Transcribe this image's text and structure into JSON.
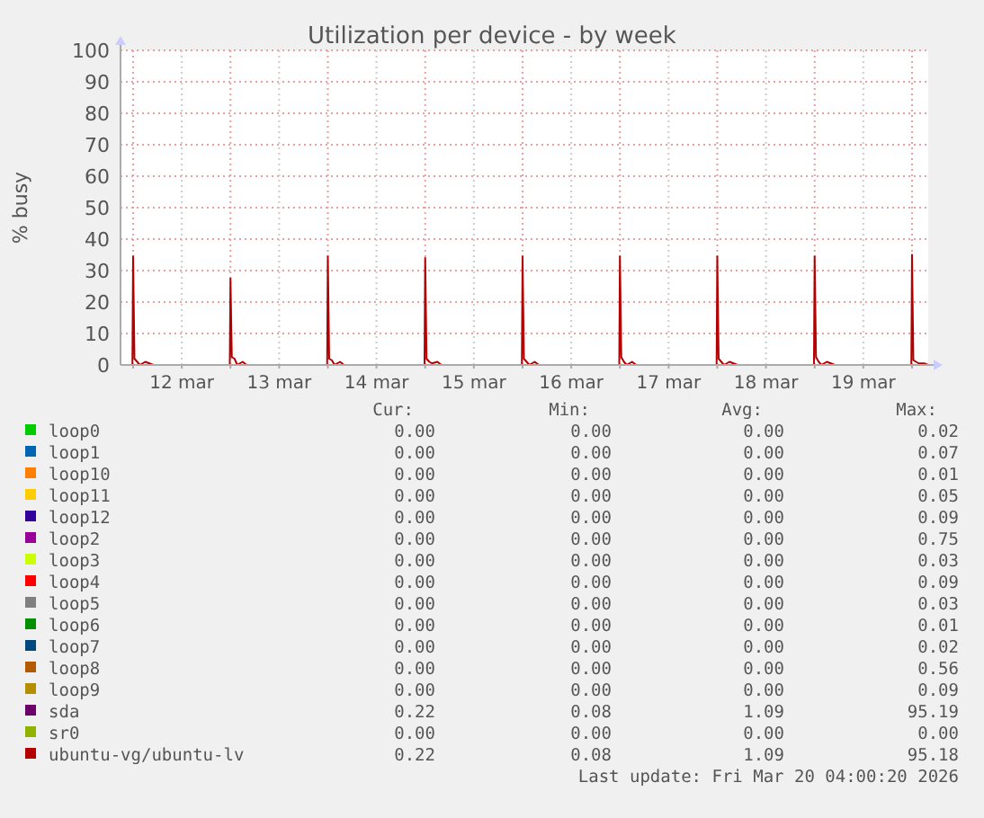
{
  "chart_data": {
    "type": "line",
    "title": "Utilization per device - by week",
    "ylabel": "% busy",
    "x": [
      "2026-03-11T20:54",
      "2026-03-11T23:50",
      "2026-03-12T00:00",
      "2026-03-12T00:20",
      "2026-03-12T01:00",
      "2026-03-12T01:40",
      "2026-03-12T03:00",
      "2026-03-12T04:00",
      "2026-03-12T05:00",
      "2026-03-12T23:50",
      "2026-03-13T00:00",
      "2026-03-13T00:20",
      "2026-03-13T01:00",
      "2026-03-13T01:40",
      "2026-03-13T03:00",
      "2026-03-13T04:00",
      "2026-03-13T05:00",
      "2026-03-13T23:50",
      "2026-03-14T00:00",
      "2026-03-14T00:20",
      "2026-03-14T01:00",
      "2026-03-14T01:40",
      "2026-03-14T03:00",
      "2026-03-14T04:00",
      "2026-03-14T05:00",
      "2026-03-14T23:50",
      "2026-03-15T00:00",
      "2026-03-15T00:20",
      "2026-03-15T01:00",
      "2026-03-15T01:40",
      "2026-03-15T03:00",
      "2026-03-15T04:00",
      "2026-03-15T05:00",
      "2026-03-15T23:50",
      "2026-03-16T00:00",
      "2026-03-16T00:20",
      "2026-03-16T01:00",
      "2026-03-16T01:40",
      "2026-03-16T03:00",
      "2026-03-16T04:00",
      "2026-03-16T05:00",
      "2026-03-16T23:50",
      "2026-03-17T00:00",
      "2026-03-17T00:20",
      "2026-03-17T01:00",
      "2026-03-17T01:40",
      "2026-03-17T03:00",
      "2026-03-17T04:00",
      "2026-03-17T05:00",
      "2026-03-17T23:50",
      "2026-03-18T00:00",
      "2026-03-18T00:20",
      "2026-03-18T01:00",
      "2026-03-18T01:40",
      "2026-03-18T03:00",
      "2026-03-18T04:00",
      "2026-03-18T05:00",
      "2026-03-18T23:50",
      "2026-03-19T00:00",
      "2026-03-19T00:20",
      "2026-03-19T01:00",
      "2026-03-19T01:40",
      "2026-03-19T03:00",
      "2026-03-19T04:00",
      "2026-03-19T05:00",
      "2026-03-19T23:50",
      "2026-03-20T00:00",
      "2026-03-20T00:20",
      "2026-03-20T01:00",
      "2026-03-20T01:40",
      "2026-03-20T03:00",
      "2026-03-20T04:00"
    ],
    "xlim": [
      "2026-03-11T20:54",
      "2026-03-20T04:00"
    ],
    "xticks": [
      {
        "value": "2026-03-12T00:00",
        "label": null
      },
      {
        "value": "2026-03-12T12:00",
        "label": "12 mar"
      },
      {
        "value": "2026-03-13T00:00",
        "label": null
      },
      {
        "value": "2026-03-13T12:00",
        "label": "13 mar"
      },
      {
        "value": "2026-03-14T00:00",
        "label": null
      },
      {
        "value": "2026-03-14T12:00",
        "label": "14 mar"
      },
      {
        "value": "2026-03-15T00:00",
        "label": null
      },
      {
        "value": "2026-03-15T12:00",
        "label": "15 mar"
      },
      {
        "value": "2026-03-16T00:00",
        "label": null
      },
      {
        "value": "2026-03-16T12:00",
        "label": "16 mar"
      },
      {
        "value": "2026-03-17T00:00",
        "label": null
      },
      {
        "value": "2026-03-17T12:00",
        "label": "17 mar"
      },
      {
        "value": "2026-03-18T00:00",
        "label": null
      },
      {
        "value": "2026-03-18T12:00",
        "label": "18 mar"
      },
      {
        "value": "2026-03-19T00:00",
        "label": null
      },
      {
        "value": "2026-03-19T12:00",
        "label": "19 mar"
      },
      {
        "value": "2026-03-20T00:00",
        "label": null
      }
    ],
    "ylim": [
      0,
      100
    ],
    "yticks": [
      0,
      10,
      20,
      30,
      40,
      50,
      60,
      70,
      80,
      90,
      100
    ],
    "grid": true,
    "legend": "bottom",
    "series": [
      {
        "name": "loop0",
        "color": "#00cc00",
        "values": [
          null,
          null,
          null,
          null,
          null,
          null,
          null,
          null,
          null,
          null,
          null,
          null,
          null,
          null,
          null,
          null,
          null,
          null,
          null,
          null,
          null,
          null,
          null,
          null,
          null,
          null,
          null,
          null,
          null,
          null,
          null,
          null,
          null,
          null,
          null,
          null,
          null,
          null,
          null,
          null,
          null,
          null,
          null,
          null,
          null,
          null,
          null,
          null,
          null,
          null,
          null,
          null,
          null,
          null,
          null,
          null,
          null,
          null,
          null,
          null,
          null,
          null,
          null,
          null,
          null,
          null,
          null,
          null,
          null,
          null,
          null,
          null
        ]
      },
      {
        "name": "loop1",
        "color": "#0066b3",
        "values": [
          null,
          null,
          null,
          null,
          null,
          null,
          null,
          null,
          null,
          null,
          null,
          null,
          null,
          null,
          null,
          null,
          null,
          null,
          null,
          null,
          null,
          null,
          null,
          null,
          null,
          null,
          null,
          null,
          null,
          null,
          null,
          null,
          null,
          null,
          null,
          null,
          null,
          null,
          null,
          null,
          null,
          null,
          null,
          null,
          null,
          null,
          null,
          null,
          null,
          null,
          null,
          null,
          null,
          null,
          null,
          null,
          null,
          null,
          null,
          null,
          null,
          null,
          null,
          null,
          null,
          null,
          null,
          null,
          null,
          null,
          null,
          null
        ]
      },
      {
        "name": "loop10",
        "color": "#ff8000",
        "values": [
          null,
          null,
          null,
          null,
          null,
          null,
          null,
          null,
          null,
          null,
          null,
          null,
          null,
          null,
          null,
          null,
          null,
          null,
          null,
          null,
          null,
          null,
          null,
          null,
          null,
          null,
          null,
          null,
          null,
          null,
          null,
          null,
          null,
          null,
          null,
          null,
          null,
          null,
          null,
          null,
          null,
          null,
          null,
          null,
          null,
          null,
          null,
          null,
          null,
          null,
          null,
          null,
          null,
          null,
          null,
          null,
          null,
          null,
          null,
          null,
          null,
          null,
          null,
          null,
          null,
          null,
          null,
          null,
          null,
          null,
          null,
          null
        ]
      },
      {
        "name": "loop11",
        "color": "#ffcc00",
        "values": [
          null,
          null,
          null,
          null,
          null,
          null,
          null,
          null,
          null,
          null,
          null,
          null,
          null,
          null,
          null,
          null,
          null,
          null,
          null,
          null,
          null,
          null,
          null,
          null,
          null,
          null,
          null,
          null,
          null,
          null,
          null,
          null,
          null,
          null,
          null,
          null,
          null,
          null,
          null,
          null,
          null,
          null,
          null,
          null,
          null,
          null,
          null,
          null,
          null,
          null,
          null,
          null,
          null,
          null,
          null,
          null,
          null,
          null,
          null,
          null,
          null,
          null,
          null,
          null,
          null,
          null,
          null,
          null,
          null,
          null,
          null,
          null
        ]
      },
      {
        "name": "loop12",
        "color": "#330099",
        "values": [
          null,
          null,
          null,
          null,
          null,
          null,
          null,
          null,
          null,
          null,
          null,
          null,
          null,
          null,
          null,
          null,
          null,
          null,
          null,
          null,
          null,
          null,
          null,
          null,
          null,
          null,
          null,
          null,
          null,
          null,
          null,
          null,
          null,
          null,
          null,
          null,
          null,
          null,
          null,
          null,
          null,
          null,
          null,
          null,
          null,
          null,
          null,
          null,
          null,
          null,
          null,
          null,
          null,
          null,
          null,
          null,
          null,
          null,
          null,
          null,
          null,
          null,
          null,
          null,
          null,
          null,
          null,
          null,
          null,
          null,
          null,
          null
        ]
      },
      {
        "name": "loop2",
        "color": "#990099",
        "values": [
          null,
          null,
          null,
          null,
          null,
          null,
          null,
          null,
          null,
          null,
          null,
          null,
          null,
          null,
          null,
          null,
          null,
          null,
          null,
          null,
          null,
          null,
          null,
          null,
          null,
          null,
          null,
          null,
          null,
          null,
          null,
          null,
          null,
          null,
          null,
          null,
          null,
          null,
          null,
          null,
          null,
          null,
          null,
          null,
          null,
          null,
          null,
          null,
          null,
          null,
          null,
          null,
          null,
          null,
          null,
          null,
          null,
          null,
          null,
          null,
          null,
          null,
          null,
          null,
          null,
          null,
          null,
          null,
          null,
          null,
          null,
          null
        ]
      },
      {
        "name": "loop3",
        "color": "#ccff00",
        "values": [
          null,
          null,
          null,
          null,
          null,
          null,
          null,
          null,
          null,
          null,
          null,
          null,
          null,
          null,
          null,
          null,
          null,
          null,
          null,
          null,
          null,
          null,
          null,
          null,
          null,
          null,
          null,
          null,
          null,
          null,
          null,
          null,
          null,
          null,
          null,
          null,
          null,
          null,
          null,
          null,
          null,
          null,
          null,
          null,
          null,
          null,
          null,
          null,
          null,
          null,
          null,
          null,
          null,
          null,
          null,
          null,
          null,
          null,
          null,
          null,
          null,
          null,
          null,
          null,
          null,
          null,
          null,
          null,
          null,
          null,
          null,
          null
        ]
      },
      {
        "name": "loop4",
        "color": "#ff0000",
        "values": [
          null,
          null,
          null,
          null,
          null,
          null,
          null,
          null,
          null,
          null,
          null,
          null,
          null,
          null,
          null,
          null,
          null,
          null,
          null,
          null,
          null,
          null,
          null,
          null,
          null,
          null,
          null,
          null,
          null,
          null,
          null,
          null,
          null,
          null,
          null,
          null,
          null,
          null,
          null,
          null,
          null,
          null,
          null,
          null,
          null,
          null,
          null,
          null,
          null,
          null,
          null,
          null,
          null,
          null,
          null,
          null,
          null,
          null,
          null,
          null,
          null,
          null,
          null,
          null,
          null,
          null,
          null,
          null,
          null,
          null,
          null,
          null
        ]
      },
      {
        "name": "loop5",
        "color": "#808080",
        "values": [
          null,
          null,
          null,
          null,
          null,
          null,
          null,
          null,
          null,
          null,
          null,
          null,
          null,
          null,
          null,
          null,
          null,
          null,
          null,
          null,
          null,
          null,
          null,
          null,
          null,
          null,
          null,
          null,
          null,
          null,
          null,
          null,
          null,
          null,
          null,
          null,
          null,
          null,
          null,
          null,
          null,
          null,
          null,
          null,
          null,
          null,
          null,
          null,
          null,
          null,
          null,
          null,
          null,
          null,
          null,
          null,
          null,
          null,
          null,
          null,
          null,
          null,
          null,
          null,
          null,
          null,
          null,
          null,
          null,
          null,
          null,
          null
        ]
      },
      {
        "name": "loop6",
        "color": "#008f00",
        "values": [
          null,
          null,
          null,
          null,
          null,
          null,
          null,
          null,
          null,
          null,
          null,
          null,
          null,
          null,
          null,
          null,
          null,
          null,
          null,
          null,
          null,
          null,
          null,
          null,
          null,
          null,
          null,
          null,
          null,
          null,
          null,
          null,
          null,
          null,
          null,
          null,
          null,
          null,
          null,
          null,
          null,
          null,
          null,
          null,
          null,
          null,
          null,
          null,
          null,
          null,
          null,
          null,
          null,
          null,
          null,
          null,
          null,
          null,
          null,
          null,
          null,
          null,
          null,
          null,
          null,
          null,
          null,
          null,
          null,
          null,
          null,
          null
        ]
      },
      {
        "name": "loop7",
        "color": "#00487d",
        "values": [
          null,
          null,
          null,
          null,
          null,
          null,
          null,
          null,
          null,
          null,
          null,
          null,
          null,
          null,
          null,
          null,
          null,
          null,
          null,
          null,
          null,
          null,
          null,
          null,
          null,
          null,
          null,
          null,
          null,
          null,
          null,
          null,
          null,
          null,
          null,
          null,
          null,
          null,
          null,
          null,
          null,
          null,
          null,
          null,
          null,
          null,
          null,
          null,
          null,
          null,
          null,
          null,
          null,
          null,
          null,
          null,
          null,
          null,
          null,
          null,
          null,
          null,
          null,
          null,
          null,
          null,
          null,
          null,
          null,
          null,
          null,
          null
        ]
      },
      {
        "name": "loop8",
        "color": "#b35a00",
        "values": [
          null,
          null,
          null,
          null,
          null,
          null,
          null,
          null,
          null,
          null,
          null,
          null,
          null,
          null,
          null,
          null,
          null,
          null,
          null,
          null,
          null,
          null,
          null,
          null,
          null,
          null,
          null,
          null,
          null,
          null,
          null,
          null,
          null,
          null,
          null,
          null,
          null,
          null,
          null,
          null,
          null,
          null,
          null,
          null,
          null,
          null,
          null,
          null,
          null,
          null,
          null,
          null,
          null,
          null,
          null,
          null,
          null,
          null,
          null,
          null,
          null,
          null,
          null,
          null,
          null,
          null,
          null,
          null,
          null,
          null,
          null,
          null
        ]
      },
      {
        "name": "loop9",
        "color": "#b38f00",
        "values": [
          null,
          null,
          null,
          null,
          null,
          null,
          null,
          null,
          null,
          null,
          null,
          null,
          null,
          null,
          null,
          null,
          null,
          null,
          null,
          null,
          null,
          null,
          null,
          null,
          null,
          null,
          null,
          null,
          null,
          null,
          null,
          null,
          null,
          null,
          null,
          null,
          null,
          null,
          null,
          null,
          null,
          null,
          null,
          null,
          null,
          null,
          null,
          null,
          null,
          null,
          null,
          null,
          null,
          null,
          null,
          null,
          null,
          null,
          null,
          null,
          null,
          null,
          null,
          null,
          null,
          null,
          null,
          null,
          null,
          null,
          null,
          null
        ]
      },
      {
        "name": "sda",
        "color": "#6b006b",
        "values": [
          null,
          null,
          null,
          null,
          null,
          null,
          null,
          null,
          null,
          null,
          null,
          null,
          null,
          null,
          null,
          null,
          null,
          null,
          null,
          null,
          null,
          null,
          null,
          null,
          null,
          null,
          null,
          null,
          null,
          null,
          null,
          null,
          null,
          null,
          null,
          null,
          null,
          null,
          null,
          null,
          null,
          null,
          null,
          null,
          null,
          null,
          null,
          null,
          null,
          null,
          null,
          null,
          null,
          null,
          null,
          null,
          null,
          null,
          null,
          null,
          null,
          null,
          null,
          null,
          null,
          null,
          null,
          null,
          null,
          null,
          null,
          null
        ]
      },
      {
        "name": "sr0",
        "color": "#8fb300",
        "values": [
          null,
          null,
          null,
          null,
          null,
          null,
          null,
          null,
          null,
          null,
          null,
          null,
          null,
          null,
          null,
          null,
          null,
          null,
          null,
          null,
          null,
          null,
          null,
          null,
          null,
          null,
          null,
          null,
          null,
          null,
          null,
          null,
          null,
          null,
          null,
          null,
          null,
          null,
          null,
          null,
          null,
          null,
          null,
          null,
          null,
          null,
          null,
          null,
          null,
          null,
          null,
          null,
          null,
          null,
          null,
          null,
          null,
          null,
          null,
          null,
          null,
          null,
          null,
          null,
          null,
          null,
          null,
          null,
          null,
          null,
          null,
          null
        ]
      },
      {
        "name": "ubuntu-vg/ubuntu-lv",
        "color": "#b30000",
        "values": [
          0,
          0,
          34.5,
          2,
          1,
          0,
          1,
          0.5,
          0,
          0,
          27.5,
          2.5,
          2,
          0,
          1,
          0,
          0,
          0,
          34.5,
          2,
          1.5,
          0,
          1,
          0,
          0,
          0,
          34,
          2,
          1,
          0.5,
          1,
          0,
          0,
          0,
          34.5,
          2,
          1,
          0,
          1,
          0,
          0,
          0,
          34.5,
          2.5,
          1,
          0,
          1,
          0,
          0,
          0,
          34.5,
          2,
          1,
          0,
          1,
          0.5,
          0,
          0,
          34.5,
          2.5,
          1,
          0,
          1,
          0.5,
          0,
          0,
          35,
          1.5,
          1,
          0.5,
          0.5,
          0
        ]
      }
    ],
    "annotations": [
      "Cur:",
      "Min:",
      "Avg:",
      "Max:",
      "0.00",
      "0.00",
      "0.00",
      "0.02",
      "0.00",
      "0.00",
      "0.00",
      "0.07",
      "0.00",
      "0.00",
      "0.00",
      "0.01",
      "0.00",
      "0.00",
      "0.00",
      "0.05",
      "0.00",
      "0.00",
      "0.00",
      "0.09",
      "0.00",
      "0.00",
      "0.00",
      "0.75",
      "0.00",
      "0.00",
      "0.00",
      "0.03",
      "0.00",
      "0.00",
      "0.00",
      "0.09",
      "0.00",
      "0.00",
      "0.00",
      "0.03",
      "0.00",
      "0.00",
      "0.00",
      "0.01",
      "0.00",
      "0.00",
      "0.00",
      "0.02",
      "0.00",
      "0.00",
      "0.00",
      "0.56",
      "0.00",
      "0.00",
      "0.00",
      "0.09",
      "0.22",
      "0.08",
      "1.09",
      "95.19",
      "0.00",
      "0.00",
      "0.00",
      "0.00",
      "0.22",
      "0.08",
      "1.09",
      "95.18",
      "Last update: Fri Mar 20 04:00:20 2026"
    ]
  }
}
